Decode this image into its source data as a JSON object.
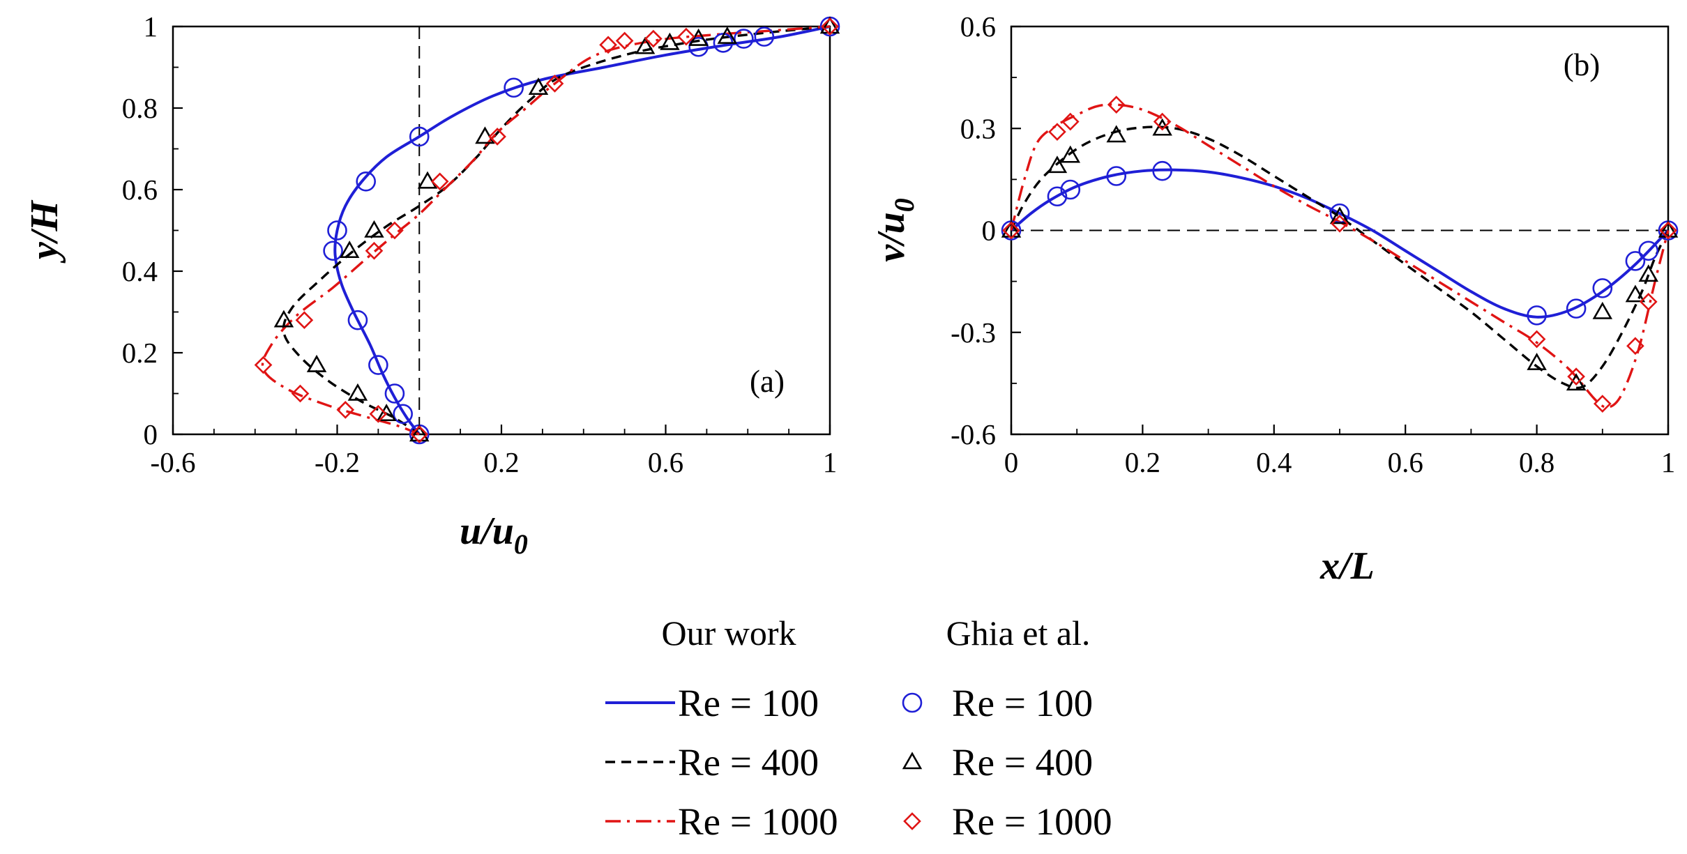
{
  "colors": {
    "re100": "#1f1fd6",
    "re400": "#000000",
    "re1000": "#e01414"
  },
  "legend": {
    "heading_ours": "Our work",
    "heading_ghia": "Ghia et al.",
    "entries": [
      {
        "id": "re100",
        "line_label": "Re = 100",
        "marker_label": "Re = 100",
        "marker": "circle",
        "line_style": "solid"
      },
      {
        "id": "re400",
        "line_label": "Re = 400",
        "marker_label": "Re = 400",
        "marker": "triangle",
        "line_style": "dashed"
      },
      {
        "id": "re1000",
        "line_label": "Re = 1000",
        "marker_label": "Re = 1000",
        "marker": "diamond",
        "line_style": "dash-dot"
      }
    ]
  },
  "chart_data": [
    {
      "panel": "(a)",
      "type": "line+scatter",
      "xlabel": {
        "base": "u/u",
        "sub": "0"
      },
      "ylabel": {
        "base": "y/H",
        "sub": ""
      },
      "xlim": [
        -0.6,
        1.0
      ],
      "ylim": [
        0,
        1.0
      ],
      "xticks": [
        -0.6,
        -0.2,
        0.2,
        0.6,
        1.0
      ],
      "xtick_labels": [
        "-0.6",
        "-0.2",
        "0.2",
        "0.6",
        "1"
      ],
      "yticks": [
        0,
        0.2,
        0.4,
        0.6,
        0.8,
        1.0
      ],
      "ytick_labels": [
        "0",
        "0.2",
        "0.4",
        "0.6",
        "0.8",
        "1"
      ],
      "minor_xticks": [
        -0.5,
        -0.4,
        -0.3,
        -0.1,
        0.1,
        0.3,
        0.4,
        0.5,
        0.7,
        0.8,
        0.9
      ],
      "minor_yticks": [
        0.1,
        0.3,
        0.5,
        0.7,
        0.9
      ],
      "ref_line": {
        "orientation": "vertical",
        "value": 0
      },
      "grid": false,
      "orientation": "x_vs_y",
      "lines": [
        {
          "id": "re100",
          "points": [
            [
              0,
              0
            ],
            [
              -0.03,
              0.04
            ],
            [
              -0.06,
              0.09
            ],
            [
              -0.09,
              0.15
            ],
            [
              -0.12,
              0.22
            ],
            [
              -0.16,
              0.3
            ],
            [
              -0.19,
              0.37
            ],
            [
              -0.205,
              0.44
            ],
            [
              -0.2,
              0.5
            ],
            [
              -0.18,
              0.56
            ],
            [
              -0.14,
              0.62
            ],
            [
              -0.08,
              0.68
            ],
            [
              0,
              0.73
            ],
            [
              0.08,
              0.78
            ],
            [
              0.18,
              0.83
            ],
            [
              0.3,
              0.87
            ],
            [
              0.45,
              0.9
            ],
            [
              0.6,
              0.93
            ],
            [
              0.75,
              0.955
            ],
            [
              0.88,
              0.975
            ],
            [
              1.0,
              1.0
            ]
          ]
        },
        {
          "id": "re400",
          "points": [
            [
              0,
              0
            ],
            [
              -0.06,
              0.04
            ],
            [
              -0.14,
              0.08
            ],
            [
              -0.22,
              0.13
            ],
            [
              -0.29,
              0.19
            ],
            [
              -0.33,
              0.25
            ],
            [
              -0.31,
              0.31
            ],
            [
              -0.24,
              0.38
            ],
            [
              -0.16,
              0.45
            ],
            [
              -0.08,
              0.51
            ],
            [
              0,
              0.56
            ],
            [
              0.07,
              0.61
            ],
            [
              0.14,
              0.68
            ],
            [
              0.2,
              0.75
            ],
            [
              0.27,
              0.82
            ],
            [
              0.35,
              0.88
            ],
            [
              0.5,
              0.93
            ],
            [
              0.65,
              0.96
            ],
            [
              0.8,
              0.98
            ],
            [
              1.0,
              1.0
            ]
          ]
        },
        {
          "id": "re1000",
          "points": [
            [
              0,
              0
            ],
            [
              -0.05,
              0.02
            ],
            [
              -0.12,
              0.04
            ],
            [
              -0.22,
              0.07
            ],
            [
              -0.32,
              0.11
            ],
            [
              -0.38,
              0.16
            ],
            [
              -0.36,
              0.22
            ],
            [
              -0.3,
              0.29
            ],
            [
              -0.21,
              0.36
            ],
            [
              -0.13,
              0.43
            ],
            [
              -0.06,
              0.49
            ],
            [
              0,
              0.54
            ],
            [
              0.06,
              0.6
            ],
            [
              0.13,
              0.67
            ],
            [
              0.19,
              0.74
            ],
            [
              0.26,
              0.8
            ],
            [
              0.33,
              0.86
            ],
            [
              0.43,
              0.93
            ],
            [
              0.57,
              0.965
            ],
            [
              0.72,
              0.98
            ],
            [
              0.86,
              0.99
            ],
            [
              1.0,
              1.0
            ]
          ]
        }
      ],
      "markers": [
        {
          "id": "re100",
          "points": [
            [
              0,
              0
            ],
            [
              -0.04,
              0.05
            ],
            [
              -0.06,
              0.1
            ],
            [
              -0.1,
              0.17
            ],
            [
              -0.15,
              0.28
            ],
            [
              -0.21,
              0.45
            ],
            [
              -0.2,
              0.5
            ],
            [
              -0.13,
              0.62
            ],
            [
              0,
              0.73
            ],
            [
              0.23,
              0.85
            ],
            [
              0.68,
              0.95
            ],
            [
              0.74,
              0.96
            ],
            [
              0.79,
              0.97
            ],
            [
              0.84,
              0.975
            ],
            [
              1.0,
              1.0
            ]
          ]
        },
        {
          "id": "re400",
          "points": [
            [
              0,
              0
            ],
            [
              -0.08,
              0.05
            ],
            [
              -0.15,
              0.1
            ],
            [
              -0.25,
              0.17
            ],
            [
              -0.33,
              0.28
            ],
            [
              -0.17,
              0.45
            ],
            [
              -0.11,
              0.5
            ],
            [
              0.02,
              0.62
            ],
            [
              0.16,
              0.73
            ],
            [
              0.29,
              0.85
            ],
            [
              0.55,
              0.95
            ],
            [
              0.61,
              0.96
            ],
            [
              0.68,
              0.97
            ],
            [
              0.75,
              0.975
            ],
            [
              1.0,
              1.0
            ]
          ]
        },
        {
          "id": "re1000",
          "points": [
            [
              0,
              0
            ],
            [
              -0.1,
              0.05
            ],
            [
              -0.18,
              0.06
            ],
            [
              -0.29,
              0.1
            ],
            [
              -0.38,
              0.17
            ],
            [
              -0.28,
              0.28
            ],
            [
              -0.11,
              0.45
            ],
            [
              -0.06,
              0.5
            ],
            [
              0.05,
              0.62
            ],
            [
              0.19,
              0.73
            ],
            [
              0.33,
              0.86
            ],
            [
              0.46,
              0.955
            ],
            [
              0.5,
              0.965
            ],
            [
              0.57,
              0.97
            ],
            [
              0.65,
              0.975
            ],
            [
              1.0,
              1.0
            ]
          ]
        }
      ]
    },
    {
      "panel": "(b)",
      "type": "line+scatter",
      "xlabel": {
        "base": "x/L",
        "sub": ""
      },
      "ylabel": {
        "base": "v/u",
        "sub": "0"
      },
      "xlim": [
        0,
        1.0
      ],
      "ylim": [
        -0.6,
        0.6
      ],
      "xticks": [
        0,
        0.2,
        0.4,
        0.6,
        0.8,
        1.0
      ],
      "xtick_labels": [
        "0",
        "0.2",
        "0.4",
        "0.6",
        "0.8",
        "1"
      ],
      "yticks": [
        -0.6,
        -0.3,
        0,
        0.3,
        0.6
      ],
      "ytick_labels": [
        "-0.6",
        "-0.3",
        "0",
        "0.3",
        "0.6"
      ],
      "minor_xticks": [
        0.1,
        0.3,
        0.5,
        0.7,
        0.9
      ],
      "minor_yticks": [
        -0.45,
        -0.15,
        0.15,
        0.45
      ],
      "ref_line": {
        "orientation": "horizontal",
        "value": 0
      },
      "grid": false,
      "orientation": "y_vs_x",
      "lines": [
        {
          "id": "re100",
          "points": [
            [
              0,
              0
            ],
            [
              0.03,
              0.05
            ],
            [
              0.06,
              0.09
            ],
            [
              0.1,
              0.13
            ],
            [
              0.15,
              0.16
            ],
            [
              0.2,
              0.175
            ],
            [
              0.25,
              0.178
            ],
            [
              0.3,
              0.172
            ],
            [
              0.35,
              0.155
            ],
            [
              0.4,
              0.13
            ],
            [
              0.45,
              0.095
            ],
            [
              0.5,
              0.05
            ],
            [
              0.55,
              0.0
            ],
            [
              0.6,
              -0.06
            ],
            [
              0.65,
              -0.12
            ],
            [
              0.7,
              -0.18
            ],
            [
              0.75,
              -0.23
            ],
            [
              0.8,
              -0.255
            ],
            [
              0.85,
              -0.235
            ],
            [
              0.9,
              -0.18
            ],
            [
              0.95,
              -0.1
            ],
            [
              1.0,
              0
            ]
          ]
        },
        {
          "id": "re400",
          "points": [
            [
              0,
              0
            ],
            [
              0.02,
              0.08
            ],
            [
              0.05,
              0.16
            ],
            [
              0.1,
              0.24
            ],
            [
              0.15,
              0.285
            ],
            [
              0.2,
              0.303
            ],
            [
              0.25,
              0.3
            ],
            [
              0.3,
              0.27
            ],
            [
              0.35,
              0.22
            ],
            [
              0.4,
              0.16
            ],
            [
              0.45,
              0.1
            ],
            [
              0.5,
              0.04
            ],
            [
              0.55,
              -0.03
            ],
            [
              0.6,
              -0.1
            ],
            [
              0.65,
              -0.17
            ],
            [
              0.7,
              -0.24
            ],
            [
              0.75,
              -0.32
            ],
            [
              0.8,
              -0.4
            ],
            [
              0.84,
              -0.45
            ],
            [
              0.87,
              -0.46
            ],
            [
              0.9,
              -0.4
            ],
            [
              0.93,
              -0.3
            ],
            [
              0.96,
              -0.18
            ],
            [
              0.98,
              -0.08
            ],
            [
              1.0,
              0
            ]
          ]
        },
        {
          "id": "re1000",
          "points": [
            [
              0,
              0
            ],
            [
              0.02,
              0.15
            ],
            [
              0.04,
              0.26
            ],
            [
              0.07,
              0.31
            ],
            [
              0.1,
              0.34
            ],
            [
              0.13,
              0.365
            ],
            [
              0.16,
              0.37
            ],
            [
              0.2,
              0.355
            ],
            [
              0.25,
              0.31
            ],
            [
              0.3,
              0.25
            ],
            [
              0.35,
              0.19
            ],
            [
              0.4,
              0.13
            ],
            [
              0.45,
              0.075
            ],
            [
              0.5,
              0.025
            ],
            [
              0.55,
              -0.03
            ],
            [
              0.6,
              -0.09
            ],
            [
              0.65,
              -0.15
            ],
            [
              0.7,
              -0.21
            ],
            [
              0.75,
              -0.27
            ],
            [
              0.8,
              -0.33
            ],
            [
              0.85,
              -0.41
            ],
            [
              0.89,
              -0.5
            ],
            [
              0.91,
              -0.52
            ],
            [
              0.93,
              -0.48
            ],
            [
              0.955,
              -0.35
            ],
            [
              0.98,
              -0.15
            ],
            [
              1.0,
              0
            ]
          ]
        }
      ],
      "markers": [
        {
          "id": "re100",
          "points": [
            [
              0,
              0
            ],
            [
              0.07,
              0.1
            ],
            [
              0.09,
              0.12
            ],
            [
              0.16,
              0.16
            ],
            [
              0.23,
              0.175
            ],
            [
              0.5,
              0.05
            ],
            [
              0.8,
              -0.25
            ],
            [
              0.86,
              -0.23
            ],
            [
              0.9,
              -0.17
            ],
            [
              0.95,
              -0.09
            ],
            [
              0.97,
              -0.06
            ],
            [
              1.0,
              0
            ]
          ]
        },
        {
          "id": "re400",
          "points": [
            [
              0,
              0
            ],
            [
              0.07,
              0.19
            ],
            [
              0.09,
              0.22
            ],
            [
              0.16,
              0.28
            ],
            [
              0.23,
              0.3
            ],
            [
              0.5,
              0.04
            ],
            [
              0.8,
              -0.39
            ],
            [
              0.86,
              -0.45
            ],
            [
              0.9,
              -0.24
            ],
            [
              0.95,
              -0.19
            ],
            [
              0.97,
              -0.13
            ],
            [
              1.0,
              0
            ]
          ]
        },
        {
          "id": "re1000",
          "points": [
            [
              0,
              0
            ],
            [
              0.07,
              0.29
            ],
            [
              0.09,
              0.32
            ],
            [
              0.16,
              0.37
            ],
            [
              0.23,
              0.32
            ],
            [
              0.5,
              0.02
            ],
            [
              0.8,
              -0.32
            ],
            [
              0.86,
              -0.43
            ],
            [
              0.9,
              -0.51
            ],
            [
              0.95,
              -0.34
            ],
            [
              0.97,
              -0.21
            ],
            [
              1.0,
              0
            ]
          ]
        }
      ]
    }
  ]
}
